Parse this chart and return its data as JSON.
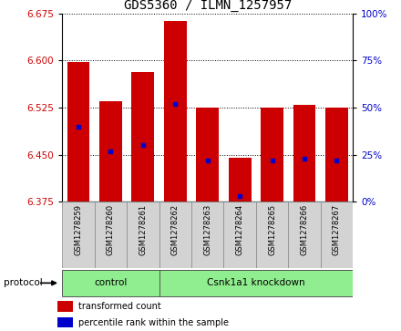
{
  "title": "GDS5360 / ILMN_1257957",
  "samples": [
    "GSM1278259",
    "GSM1278260",
    "GSM1278261",
    "GSM1278262",
    "GSM1278263",
    "GSM1278264",
    "GSM1278265",
    "GSM1278266",
    "GSM1278267"
  ],
  "bar_bottom": 6.375,
  "bar_tops": [
    6.597,
    6.535,
    6.582,
    6.662,
    6.525,
    6.445,
    6.525,
    6.53,
    6.525
  ],
  "blue_dot_values": [
    6.495,
    6.455,
    6.466,
    6.531,
    6.441,
    6.384,
    6.441,
    6.444,
    6.441
  ],
  "ylim_left": [
    6.375,
    6.675
  ],
  "ylim_right": [
    0,
    100
  ],
  "yticks_left": [
    6.375,
    6.45,
    6.525,
    6.6,
    6.675
  ],
  "yticks_right": [
    0,
    25,
    50,
    75,
    100
  ],
  "bar_color": "#CC0000",
  "dot_color": "#0000CC",
  "bar_width": 0.7,
  "green_color": "#90EE90",
  "gray_color": "#D3D3D3",
  "left_axis_color": "#CC0000",
  "right_axis_color": "#0000CC",
  "title_fontsize": 10,
  "legend_items": [
    {
      "label": "transformed count",
      "color": "#CC0000"
    },
    {
      "label": "percentile rank within the sample",
      "color": "#0000CC"
    }
  ],
  "control_count": 3,
  "knockdown_count": 6,
  "control_label": "control",
  "knockdown_label": "Csnk1a1 knockdown",
  "protocol_label": "protocol"
}
